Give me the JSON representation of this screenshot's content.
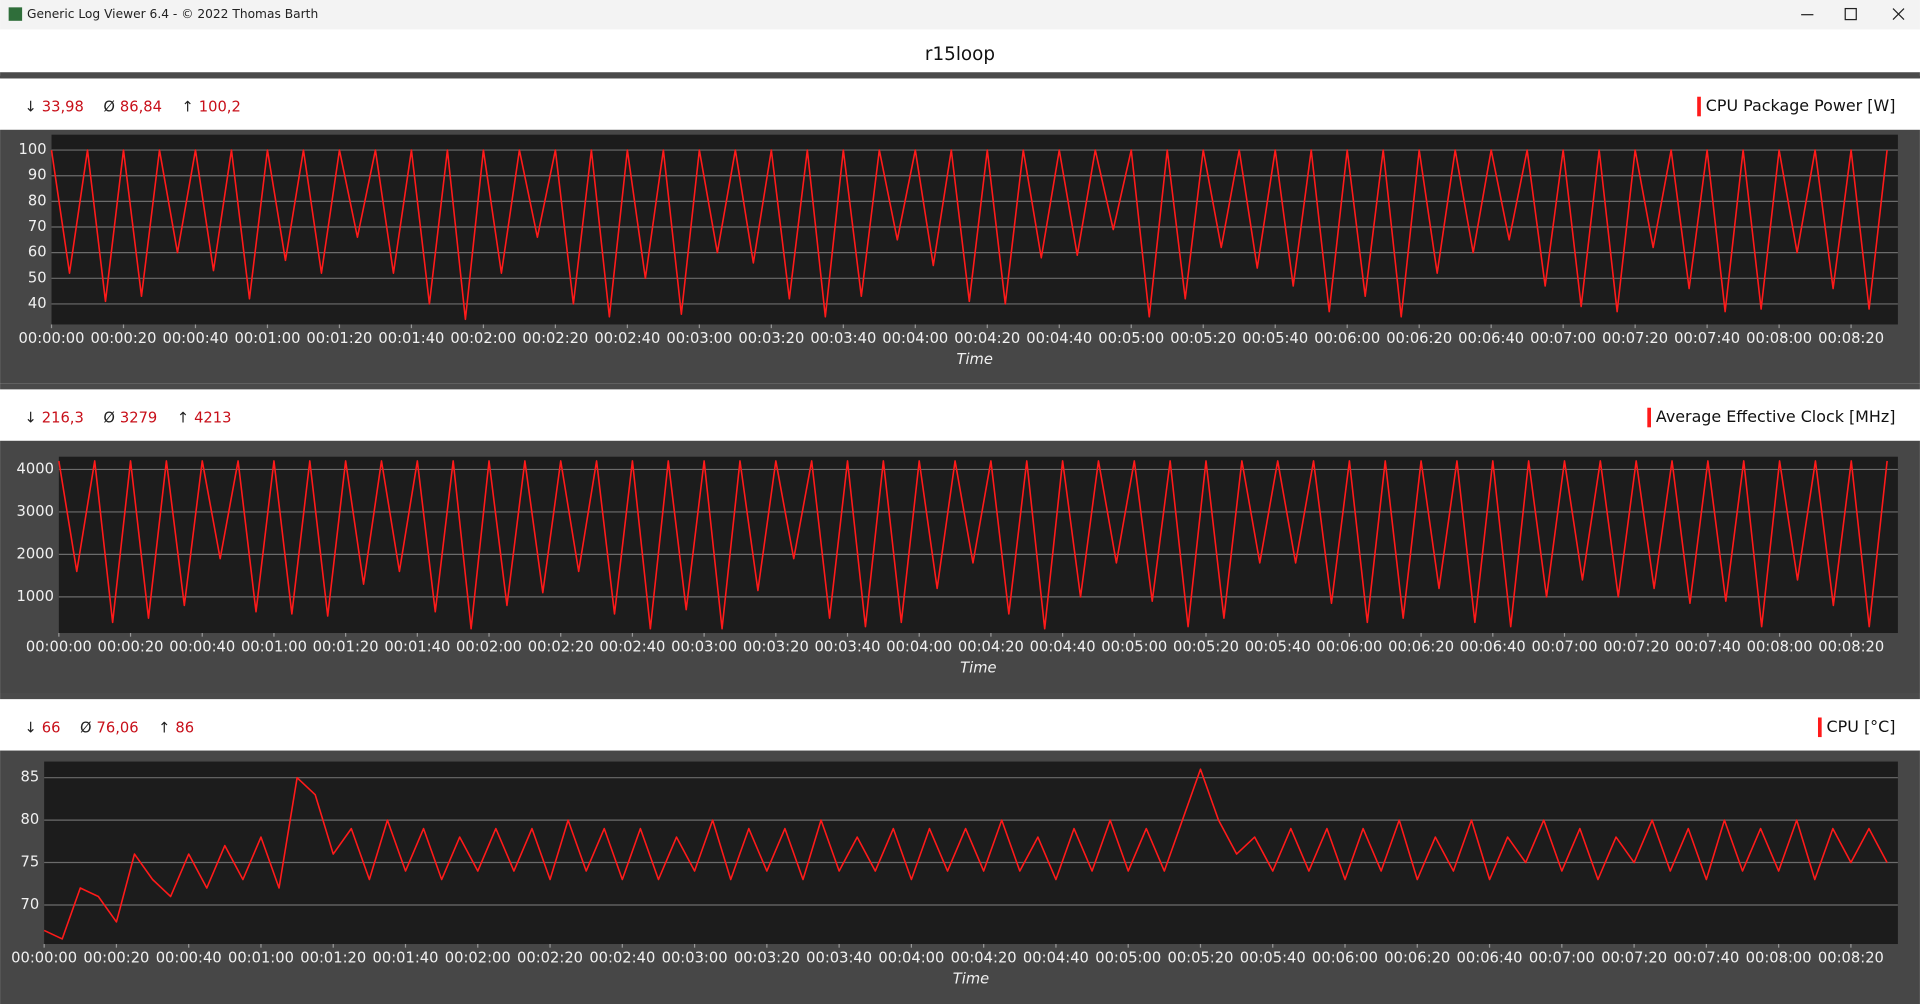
{
  "window_title": "Generic Log Viewer 6.4 - © 2022 Thomas Barth",
  "header": "r15loop",
  "chart_data": [
    {
      "type": "line",
      "x_label": "Time",
      "stats": [
        {
          "symbol": "↓",
          "value": "33,98"
        },
        {
          "symbol": "Ø",
          "value": "86,84"
        },
        {
          "symbol": "↑",
          "value": "100,2"
        }
      ],
      "x": [
        0,
        5,
        10,
        15,
        20,
        25,
        30,
        35,
        40,
        45,
        50,
        55,
        60,
        65,
        70,
        75,
        80,
        85,
        90,
        95,
        100,
        105,
        110,
        115,
        120,
        125,
        130,
        135,
        140,
        145,
        150,
        155,
        160,
        165,
        170,
        175,
        180,
        185,
        190,
        195,
        200,
        205,
        210,
        215,
        220,
        225,
        230,
        235,
        240,
        245,
        250,
        255,
        260,
        265,
        270,
        275,
        280,
        285,
        290,
        295,
        300,
        305,
        310,
        315,
        320,
        325,
        330,
        335,
        340,
        345,
        350,
        355,
        360,
        365,
        370,
        375,
        380,
        385,
        390,
        395,
        400,
        405,
        410,
        415,
        420,
        425,
        430,
        435,
        440,
        445,
        450,
        455,
        460,
        465,
        470,
        475,
        480,
        485,
        490,
        495,
        500,
        505,
        510
      ],
      "series": [
        {
          "name": "CPU Package Power [W]",
          "color": "#ff1a1a",
          "values": [
            100,
            52,
            100,
            41,
            100,
            43,
            100,
            60,
            100,
            53,
            100,
            42,
            100,
            57,
            100,
            52,
            100,
            66,
            100,
            52,
            100,
            40,
            100,
            34,
            100,
            52,
            100,
            66,
            100,
            40,
            100,
            35,
            100,
            50,
            100,
            36,
            100,
            60,
            100,
            56,
            100,
            42,
            100,
            35,
            100,
            43,
            100,
            65,
            100,
            55,
            100,
            41,
            100,
            40,
            100,
            58,
            100,
            59,
            100,
            69,
            100,
            35,
            100,
            42,
            100,
            62,
            100,
            54,
            100,
            47,
            100,
            37,
            100,
            43,
            100,
            35,
            100,
            52,
            100,
            60,
            100,
            65,
            100,
            47,
            100,
            39,
            100,
            37,
            100,
            62,
            100,
            46,
            100,
            37,
            100,
            38,
            100,
            60,
            100,
            46,
            100,
            38,
            100
          ]
        }
      ],
      "xlim": [
        0,
        513
      ],
      "ylim": [
        32,
        106
      ],
      "yticks": [
        40,
        50,
        60,
        70,
        80,
        90,
        100
      ],
      "xticks": [
        {
          "value": 0,
          "label": "00:00:00"
        },
        {
          "value": 20,
          "label": "00:00:20"
        },
        {
          "value": 40,
          "label": "00:00:40"
        },
        {
          "value": 60,
          "label": "00:01:00"
        },
        {
          "value": 80,
          "label": "00:01:20"
        },
        {
          "value": 100,
          "label": "00:01:40"
        },
        {
          "value": 120,
          "label": "00:02:00"
        },
        {
          "value": 140,
          "label": "00:02:20"
        },
        {
          "value": 160,
          "label": "00:02:40"
        },
        {
          "value": 180,
          "label": "00:03:00"
        },
        {
          "value": 200,
          "label": "00:03:20"
        },
        {
          "value": 220,
          "label": "00:03:40"
        },
        {
          "value": 240,
          "label": "00:04:00"
        },
        {
          "value": 260,
          "label": "00:04:20"
        },
        {
          "value": 280,
          "label": "00:04:40"
        },
        {
          "value": 300,
          "label": "00:05:00"
        },
        {
          "value": 320,
          "label": "00:05:20"
        },
        {
          "value": 340,
          "label": "00:05:40"
        },
        {
          "value": 360,
          "label": "00:06:00"
        },
        {
          "value": 380,
          "label": "00:06:20"
        },
        {
          "value": 400,
          "label": "00:06:40"
        },
        {
          "value": 420,
          "label": "00:07:00"
        },
        {
          "value": 440,
          "label": "00:07:20"
        },
        {
          "value": 460,
          "label": "00:07:40"
        },
        {
          "value": 480,
          "label": "00:08:00"
        },
        {
          "value": 500,
          "label": "00:08:20"
        }
      ],
      "grid": true
    },
    {
      "type": "line",
      "x_label": "Time",
      "stats": [
        {
          "symbol": "↓",
          "value": "216,3"
        },
        {
          "symbol": "Ø",
          "value": "3279"
        },
        {
          "symbol": "↑",
          "value": "4213"
        }
      ],
      "x": [
        0,
        5,
        10,
        15,
        20,
        25,
        30,
        35,
        40,
        45,
        50,
        55,
        60,
        65,
        70,
        75,
        80,
        85,
        90,
        95,
        100,
        105,
        110,
        115,
        120,
        125,
        130,
        135,
        140,
        145,
        150,
        155,
        160,
        165,
        170,
        175,
        180,
        185,
        190,
        195,
        200,
        205,
        210,
        215,
        220,
        225,
        230,
        235,
        240,
        245,
        250,
        255,
        260,
        265,
        270,
        275,
        280,
        285,
        290,
        295,
        300,
        305,
        310,
        315,
        320,
        325,
        330,
        335,
        340,
        345,
        350,
        355,
        360,
        365,
        370,
        375,
        380,
        385,
        390,
        395,
        400,
        405,
        410,
        415,
        420,
        425,
        430,
        435,
        440,
        445,
        450,
        455,
        460,
        465,
        470,
        475,
        480,
        485,
        490,
        495,
        500,
        505,
        510
      ],
      "series": [
        {
          "name": "Average Effective Clock [MHz]",
          "color": "#ff1a1a",
          "values": [
            4200,
            1600,
            4200,
            400,
            4200,
            500,
            4200,
            800,
            4200,
            1900,
            4200,
            650,
            4200,
            600,
            4200,
            550,
            4200,
            1300,
            4200,
            1600,
            4200,
            650,
            4200,
            250,
            4200,
            800,
            4200,
            1100,
            4200,
            1600,
            4200,
            600,
            4200,
            250,
            4200,
            700,
            4200,
            250,
            4200,
            1150,
            4200,
            1900,
            4200,
            500,
            4200,
            300,
            4200,
            400,
            4200,
            1200,
            4200,
            1800,
            4200,
            600,
            4200,
            250,
            4200,
            1000,
            4200,
            1800,
            4200,
            900,
            4200,
            300,
            4200,
            500,
            4200,
            1800,
            4200,
            1800,
            4200,
            850,
            4200,
            400,
            4200,
            500,
            4200,
            1200,
            4200,
            400,
            4200,
            300,
            4200,
            1000,
            4200,
            1400,
            4200,
            1000,
            4200,
            1200,
            4200,
            850,
            4200,
            900,
            4200,
            300,
            4200,
            1400,
            4200,
            800,
            4200,
            300,
            4200
          ]
        }
      ],
      "xlim": [
        0,
        513
      ],
      "ylim": [
        150,
        4300
      ],
      "yticks": [
        1000,
        2000,
        3000,
        4000
      ],
      "xticks": [
        {
          "value": 0,
          "label": "00:00:00"
        },
        {
          "value": 20,
          "label": "00:00:20"
        },
        {
          "value": 40,
          "label": "00:00:40"
        },
        {
          "value": 60,
          "label": "00:01:00"
        },
        {
          "value": 80,
          "label": "00:01:20"
        },
        {
          "value": 100,
          "label": "00:01:40"
        },
        {
          "value": 120,
          "label": "00:02:00"
        },
        {
          "value": 140,
          "label": "00:02:20"
        },
        {
          "value": 160,
          "label": "00:02:40"
        },
        {
          "value": 180,
          "label": "00:03:00"
        },
        {
          "value": 200,
          "label": "00:03:20"
        },
        {
          "value": 220,
          "label": "00:03:40"
        },
        {
          "value": 240,
          "label": "00:04:00"
        },
        {
          "value": 260,
          "label": "00:04:20"
        },
        {
          "value": 280,
          "label": "00:04:40"
        },
        {
          "value": 300,
          "label": "00:05:00"
        },
        {
          "value": 320,
          "label": "00:05:20"
        },
        {
          "value": 340,
          "label": "00:05:40"
        },
        {
          "value": 360,
          "label": "00:06:00"
        },
        {
          "value": 380,
          "label": "00:06:20"
        },
        {
          "value": 400,
          "label": "00:06:40"
        },
        {
          "value": 420,
          "label": "00:07:00"
        },
        {
          "value": 440,
          "label": "00:07:20"
        },
        {
          "value": 460,
          "label": "00:07:40"
        },
        {
          "value": 480,
          "label": "00:08:00"
        },
        {
          "value": 500,
          "label": "00:08:20"
        }
      ],
      "grid": true
    },
    {
      "type": "line",
      "x_label": "Time",
      "stats": [
        {
          "symbol": "↓",
          "value": "66"
        },
        {
          "symbol": "Ø",
          "value": "76,06"
        },
        {
          "symbol": "↑",
          "value": "86"
        }
      ],
      "x": [
        0,
        5,
        10,
        15,
        20,
        25,
        30,
        35,
        40,
        45,
        50,
        55,
        60,
        65,
        70,
        75,
        80,
        85,
        90,
        95,
        100,
        105,
        110,
        115,
        120,
        125,
        130,
        135,
        140,
        145,
        150,
        155,
        160,
        165,
        170,
        175,
        180,
        185,
        190,
        195,
        200,
        205,
        210,
        215,
        220,
        225,
        230,
        235,
        240,
        245,
        250,
        255,
        260,
        265,
        270,
        275,
        280,
        285,
        290,
        295,
        300,
        305,
        310,
        315,
        320,
        325,
        330,
        335,
        340,
        345,
        350,
        355,
        360,
        365,
        370,
        375,
        380,
        385,
        390,
        395,
        400,
        405,
        410,
        415,
        420,
        425,
        430,
        435,
        440,
        445,
        450,
        455,
        460,
        465,
        470,
        475,
        480,
        485,
        490,
        495,
        500,
        505,
        510
      ],
      "series": [
        {
          "name": "CPU [°C]",
          "color": "#ff1a1a",
          "values": [
            67,
            66,
            72,
            71,
            68,
            76,
            73,
            71,
            76,
            72,
            77,
            73,
            78,
            72,
            85,
            83,
            76,
            79,
            73,
            80,
            74,
            79,
            73,
            78,
            74,
            79,
            74,
            79,
            73,
            80,
            74,
            79,
            73,
            79,
            73,
            78,
            74,
            80,
            73,
            79,
            74,
            79,
            73,
            80,
            74,
            78,
            74,
            79,
            73,
            79,
            74,
            79,
            74,
            80,
            74,
            78,
            73,
            79,
            74,
            80,
            74,
            79,
            74,
            80,
            86,
            80,
            76,
            78,
            74,
            79,
            74,
            79,
            73,
            79,
            74,
            80,
            73,
            78,
            74,
            80,
            73,
            78,
            75,
            80,
            74,
            79,
            73,
            78,
            75,
            80,
            74,
            79,
            73,
            80,
            74,
            79,
            74,
            80,
            73,
            79,
            75,
            79,
            75
          ]
        }
      ],
      "xlim": [
        0,
        513
      ],
      "ylim": [
        65.4,
        86.9
      ],
      "yticks": [
        70,
        75,
        80,
        85
      ],
      "xticks": [
        {
          "value": 0,
          "label": "00:00:00"
        },
        {
          "value": 20,
          "label": "00:00:20"
        },
        {
          "value": 40,
          "label": "00:00:40"
        },
        {
          "value": 60,
          "label": "00:01:00"
        },
        {
          "value": 80,
          "label": "00:01:20"
        },
        {
          "value": 100,
          "label": "00:01:40"
        },
        {
          "value": 120,
          "label": "00:02:00"
        },
        {
          "value": 140,
          "label": "00:02:20"
        },
        {
          "value": 160,
          "label": "00:02:40"
        },
        {
          "value": 180,
          "label": "00:03:00"
        },
        {
          "value": 200,
          "label": "00:03:20"
        },
        {
          "value": 220,
          "label": "00:03:40"
        },
        {
          "value": 240,
          "label": "00:04:00"
        },
        {
          "value": 260,
          "label": "00:04:20"
        },
        {
          "value": 280,
          "label": "00:04:40"
        },
        {
          "value": 300,
          "label": "00:05:00"
        },
        {
          "value": 320,
          "label": "00:05:20"
        },
        {
          "value": 340,
          "label": "00:05:40"
        },
        {
          "value": 360,
          "label": "00:06:00"
        },
        {
          "value": 380,
          "label": "00:06:20"
        },
        {
          "value": 400,
          "label": "00:06:40"
        },
        {
          "value": 420,
          "label": "00:07:00"
        },
        {
          "value": 440,
          "label": "00:07:20"
        },
        {
          "value": 460,
          "label": "00:07:40"
        },
        {
          "value": 480,
          "label": "00:08:00"
        },
        {
          "value": 500,
          "label": "00:08:20"
        }
      ],
      "grid": true
    }
  ]
}
